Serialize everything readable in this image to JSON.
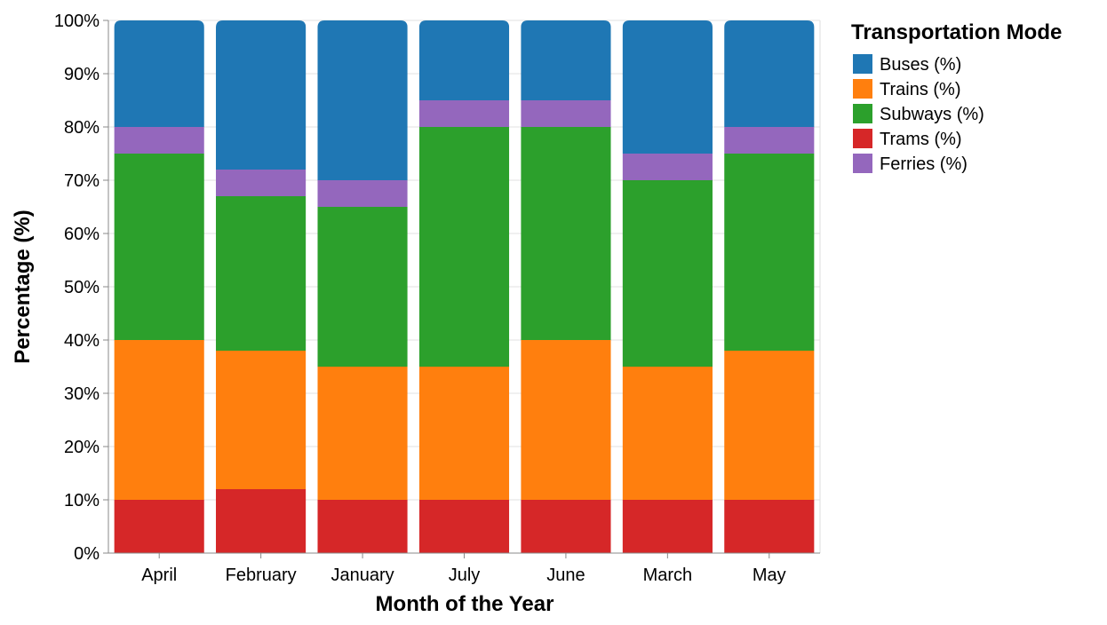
{
  "chart_data": {
    "type": "bar",
    "stacked": true,
    "categories": [
      "April",
      "February",
      "January",
      "July",
      "June",
      "March",
      "May"
    ],
    "stack_order": [
      "Trams (%)",
      "Trains (%)",
      "Subways (%)",
      "Ferries (%)",
      "Buses (%)"
    ],
    "series": [
      {
        "name": "Buses (%)",
        "color": "#1f77b4",
        "values": [
          20,
          28,
          30,
          15,
          15,
          25,
          20
        ]
      },
      {
        "name": "Trains (%)",
        "color": "#ff7f0e",
        "values": [
          30,
          26,
          25,
          25,
          30,
          25,
          28
        ]
      },
      {
        "name": "Subways (%)",
        "color": "#2ca02c",
        "values": [
          35,
          29,
          30,
          45,
          40,
          35,
          37
        ]
      },
      {
        "name": "Trams (%)",
        "color": "#d62728",
        "values": [
          10,
          12,
          10,
          10,
          10,
          10,
          10
        ]
      },
      {
        "name": "Ferries (%)",
        "color": "#9467bd",
        "values": [
          5,
          5,
          5,
          5,
          5,
          5,
          5
        ]
      }
    ],
    "xlabel": "Month of the Year",
    "ylabel": "Percentage (%)",
    "ylim": [
      0,
      100
    ],
    "yticks": [
      "0%",
      "10%",
      "20%",
      "30%",
      "40%",
      "50%",
      "60%",
      "70%",
      "80%",
      "90%",
      "100%"
    ],
    "legend_title": "Transportation Mode",
    "legend_position": "top-right",
    "grid": true
  }
}
